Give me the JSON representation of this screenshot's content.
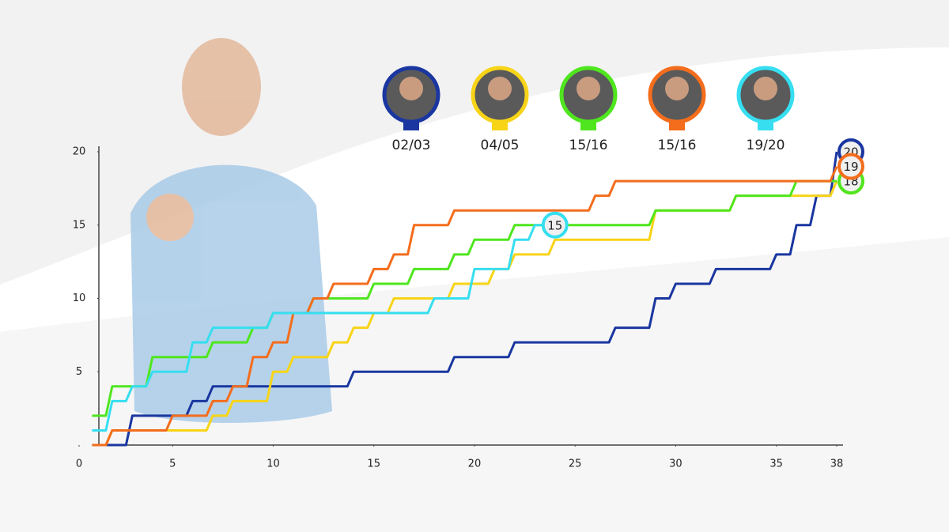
{
  "chart_data": {
    "type": "line",
    "xlim": [
      0,
      38
    ],
    "xticks": [
      0,
      5,
      10,
      15,
      20,
      25,
      30,
      35,
      38
    ],
    "ylim": [
      0,
      20
    ],
    "yticks": [
      5,
      10,
      15,
      20
    ],
    "x": [
      1,
      2,
      3,
      4,
      5,
      6,
      7,
      8,
      9,
      10,
      11,
      12,
      13,
      14,
      15,
      16,
      17,
      18,
      19,
      20,
      21,
      22,
      23,
      24,
      25,
      26,
      27,
      28,
      29,
      30,
      31,
      32,
      33,
      34,
      35,
      36,
      37,
      38
    ],
    "series": [
      {
        "name": "02/03",
        "color": "#1a36a0",
        "values": [
          0,
          0,
          2,
          2,
          2,
          3,
          4,
          4,
          4,
          4,
          4,
          4,
          4,
          5,
          5,
          5,
          5,
          5,
          6,
          6,
          6,
          7,
          7,
          7,
          7,
          7,
          8,
          8,
          10,
          11,
          11,
          12,
          12,
          12,
          13,
          15,
          17,
          20
        ]
      },
      {
        "name": "04/05",
        "color": "#f7d417",
        "values": [
          0,
          1,
          1,
          1,
          1,
          1,
          2,
          3,
          3,
          5,
          6,
          6,
          7,
          8,
          9,
          10,
          10,
          10,
          11,
          11,
          12,
          13,
          13,
          14,
          14,
          14,
          14,
          14,
          16,
          16,
          16,
          16,
          17,
          17,
          17,
          17,
          17,
          18
        ]
      },
      {
        "name": "15/16",
        "color": "#4fe61e",
        "values": [
          2,
          4,
          4,
          6,
          6,
          6,
          7,
          7,
          8,
          9,
          9,
          10,
          10,
          10,
          11,
          11,
          12,
          12,
          13,
          14,
          14,
          15,
          15,
          15,
          15,
          15,
          15,
          15,
          16,
          16,
          16,
          16,
          17,
          17,
          17,
          18,
          18,
          18
        ]
      },
      {
        "name": "15/16",
        "color": "#f46d1c",
        "values": [
          0,
          1,
          1,
          1,
          2,
          2,
          3,
          4,
          6,
          7,
          9,
          10,
          11,
          11,
          12,
          13,
          15,
          15,
          16,
          16,
          16,
          16,
          16,
          16,
          16,
          17,
          18,
          18,
          18,
          18,
          18,
          18,
          18,
          18,
          18,
          18,
          18,
          19
        ]
      },
      {
        "name": "19/20",
        "color": "#36def0",
        "values": [
          1,
          3,
          4,
          5,
          5,
          7,
          8,
          8,
          8,
          9,
          9,
          9,
          9,
          9,
          9,
          9,
          9,
          10,
          10,
          12,
          12,
          14,
          15,
          15,
          null,
          null,
          null,
          null,
          null,
          null,
          null,
          null,
          null,
          null,
          null,
          null,
          null,
          null
        ]
      }
    ]
  }
}
